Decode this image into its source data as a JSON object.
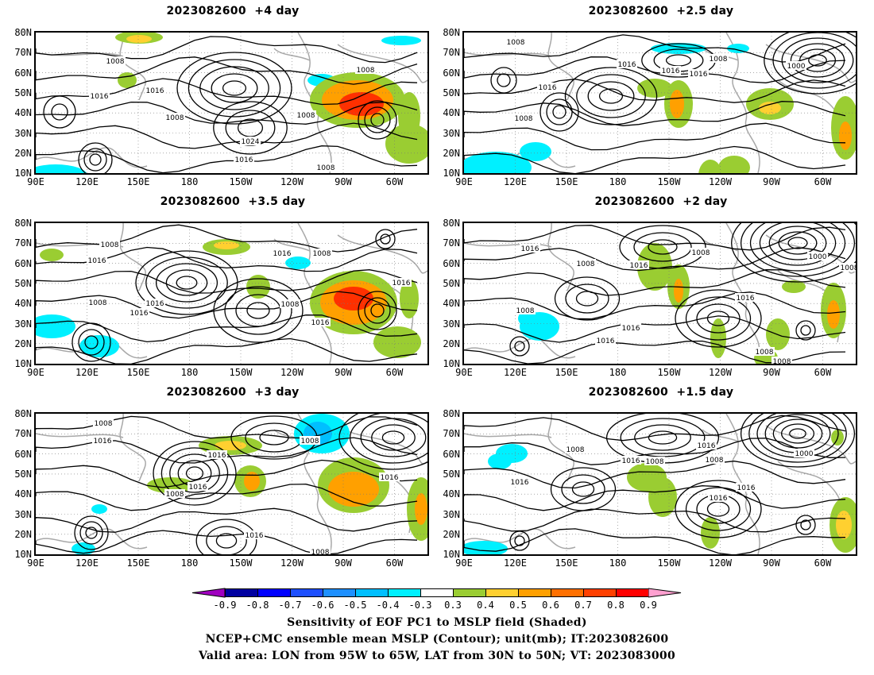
{
  "panels": [
    {
      "title": "2023082600  +4 day"
    },
    {
      "title": "2023082600  +2.5 day"
    },
    {
      "title": "2023082600  +3.5 day"
    },
    {
      "title": "2023082600  +2 day"
    },
    {
      "title": "2023082600  +3 day"
    },
    {
      "title": "2023082600  +1.5 day"
    }
  ],
  "lat_labels": [
    "80N",
    "70N",
    "60N",
    "50N",
    "40N",
    "30N",
    "20N",
    "10N"
  ],
  "lon_labels": [
    "90E",
    "120E",
    "150E",
    "180",
    "150W",
    "120W",
    "90W",
    "60W"
  ],
  "contour_labels": {
    "p0": [
      "1008",
      "1016",
      "1016",
      "1008",
      "1024",
      "1016",
      "1008",
      "1008",
      "1008"
    ],
    "p1": [
      "1008",
      "1016",
      "1016",
      "1008",
      "1000",
      "1016",
      "1016",
      "1008"
    ],
    "p2": [
      "1008",
      "1016",
      "1008",
      "1016",
      "1008",
      "1016",
      "1016",
      "1008",
      "1016",
      "1016"
    ],
    "p3": [
      "1016",
      "1008",
      "1016",
      "1008",
      "1000",
      "1008",
      "1016",
      "1008",
      "1016",
      "1016",
      "1008",
      "1008"
    ],
    "p4": [
      "1008",
      "1016",
      "1008",
      "1016",
      "1016",
      "1008",
      "1016",
      "1008",
      "1016"
    ],
    "p5": [
      "1008",
      "1016",
      "1008",
      "1016",
      "1008",
      "1016",
      "1000",
      "1016",
      "1016"
    ]
  },
  "colorbar": {
    "labels": [
      "-0.9",
      "-0.8",
      "-0.7",
      "-0.6",
      "-0.5",
      "-0.4",
      "-0.3",
      "0.3",
      "0.4",
      "0.5",
      "0.6",
      "0.7",
      "0.8",
      "0.9"
    ],
    "colors": [
      "#a000c0",
      "#0000a0",
      "#0000ff",
      "#1e50ff",
      "#1e90ff",
      "#00bfff",
      "#00f0ff",
      "#ffffff",
      "#9acd32",
      "#ffd030",
      "#ffa000",
      "#ff7000",
      "#ff4000",
      "#ff0000",
      "#ffa0d0"
    ]
  },
  "captions": [
    "Sensitivity of EOF PC1 to MSLP field (Shaded)",
    "NCEP+CMC ensemble mean MSLP (Contour); unit(mb); IT:2023082600",
    "Valid area: LON from 95W to 65W, LAT from 30N to 50N; VT: 2023083000"
  ]
}
